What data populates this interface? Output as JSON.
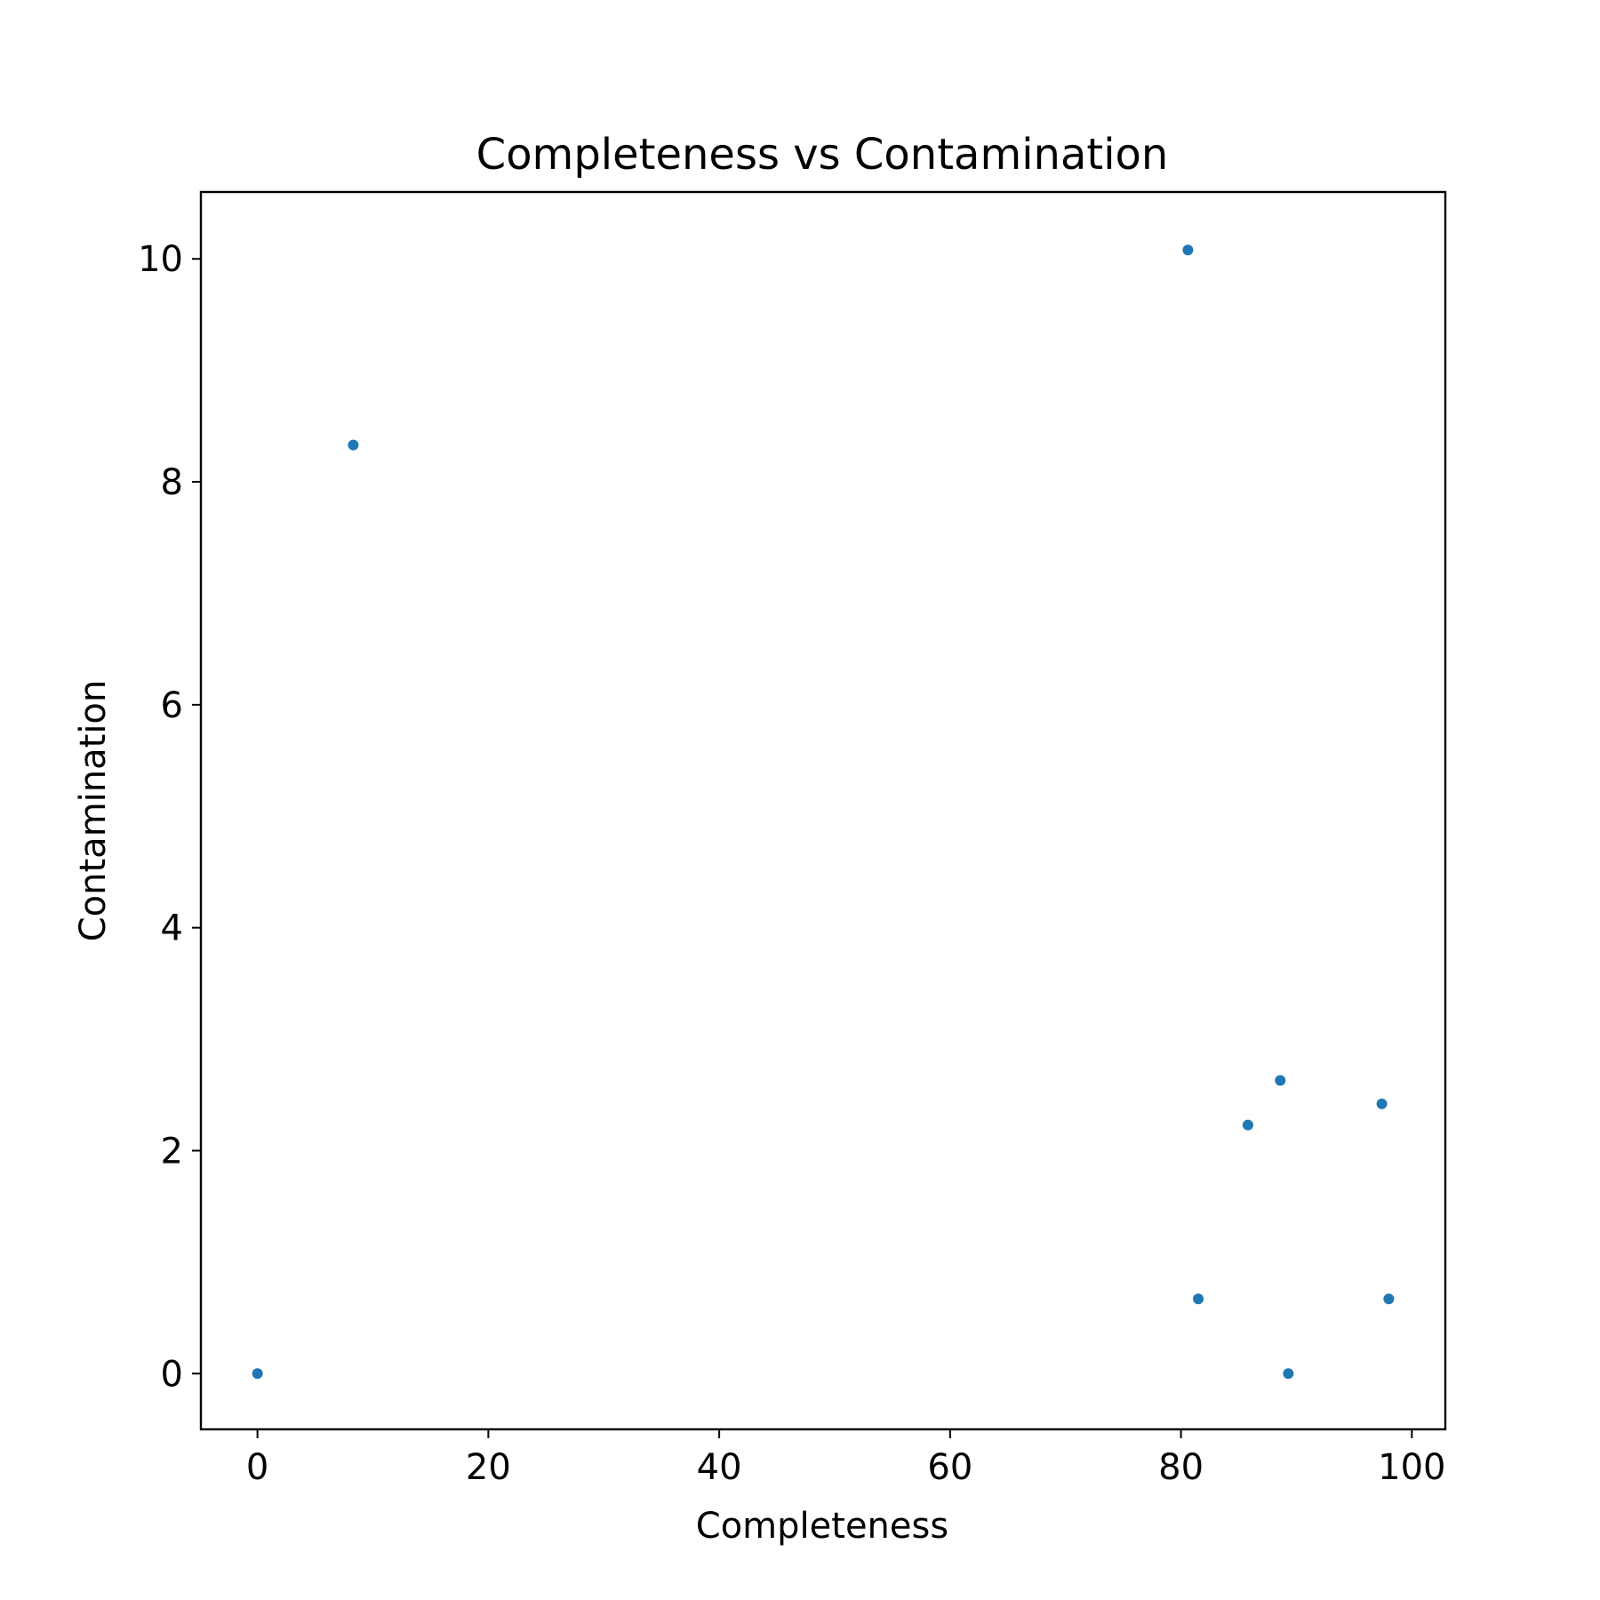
{
  "chart_data": {
    "type": "scatter",
    "title": "Completeness vs Contamination",
    "xlabel": "Completeness",
    "ylabel": "Contamination",
    "xlim": [
      -4.9,
      102.9
    ],
    "ylim": [
      -0.5,
      10.6
    ],
    "xticks": [
      0,
      20,
      40,
      60,
      80,
      100
    ],
    "yticks": [
      0,
      2,
      4,
      6,
      8,
      10
    ],
    "grid": false,
    "marker_color": "#1f77b4",
    "points": [
      {
        "x": 0.0,
        "y": 0.0
      },
      {
        "x": 8.3,
        "y": 8.33
      },
      {
        "x": 80.6,
        "y": 10.08
      },
      {
        "x": 81.5,
        "y": 0.67
      },
      {
        "x": 85.8,
        "y": 2.23
      },
      {
        "x": 88.6,
        "y": 2.63
      },
      {
        "x": 89.3,
        "y": 0.0
      },
      {
        "x": 97.4,
        "y": 2.42
      },
      {
        "x": 98.0,
        "y": 0.67
      }
    ]
  }
}
